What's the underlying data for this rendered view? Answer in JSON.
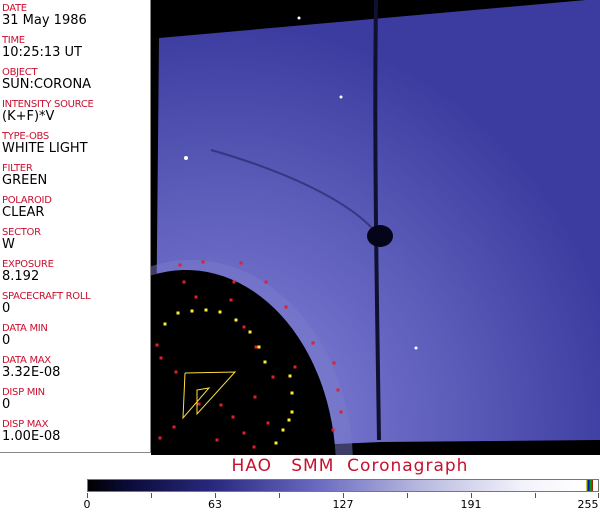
{
  "fields": [
    {
      "label": "DATE",
      "value": "31 May 1986"
    },
    {
      "label": "TIME",
      "value": "10:25:13 UT"
    },
    {
      "label": "OBJECT",
      "value": "SUN:CORONA"
    },
    {
      "label": "INTENSITY SOURCE",
      "value": "(K+F)*V"
    },
    {
      "label": "TYPE-OBS",
      "value": "WHITE LIGHT"
    },
    {
      "label": "FILTER",
      "value": "GREEN"
    },
    {
      "label": "POLAROID",
      "value": "CLEAR"
    },
    {
      "label": "SECTOR",
      "value": "W"
    },
    {
      "label": "EXPOSURE",
      "value": "8.192"
    },
    {
      "label": "SPACECRAFT ROLL",
      "value": "0"
    },
    {
      "label": "DATA MIN",
      "value": "0"
    },
    {
      "label": "DATA MAX",
      "value": "3.32E-08"
    },
    {
      "label": "DISP MIN",
      "value": "0"
    },
    {
      "label": "DISP MAX",
      "value": "1.00E-08"
    }
  ],
  "title": "HAO   SMM  Coronagraph",
  "colorbar": {
    "ticks": [
      "0",
      "63",
      "127",
      "191",
      "255"
    ],
    "colors": {
      "low": "#000000",
      "mid": "#6a6ac0",
      "high": "#ffffff"
    }
  },
  "colors": {
    "label": "#c8102e",
    "marker_red": "#e0202a",
    "marker_yellow": "#ffee33",
    "image_blue": "#4a4ab0"
  }
}
